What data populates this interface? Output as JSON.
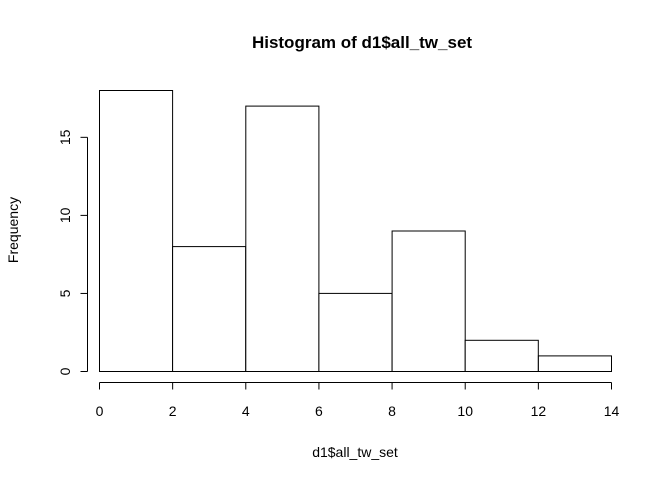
{
  "chart_data": {
    "type": "bar",
    "title": "Histogram of d1$all_tw_set",
    "xlabel": "d1$all_tw_set",
    "ylabel": "Frequency",
    "bins": [
      {
        "start": 0,
        "end": 2,
        "count": 18
      },
      {
        "start": 2,
        "end": 4,
        "count": 8
      },
      {
        "start": 4,
        "end": 6,
        "count": 17
      },
      {
        "start": 6,
        "end": 8,
        "count": 5
      },
      {
        "start": 8,
        "end": 10,
        "count": 9
      },
      {
        "start": 10,
        "end": 12,
        "count": 2
      },
      {
        "start": 12,
        "end": 14,
        "count": 1
      }
    ],
    "xlim": [
      0,
      14
    ],
    "ylim": [
      0,
      18
    ],
    "x_ticks": [
      "0",
      "2",
      "4",
      "6",
      "8",
      "10",
      "12",
      "14"
    ],
    "y_ticks": [
      "0",
      "5",
      "10",
      "15"
    ],
    "grid": false,
    "legend": false
  }
}
